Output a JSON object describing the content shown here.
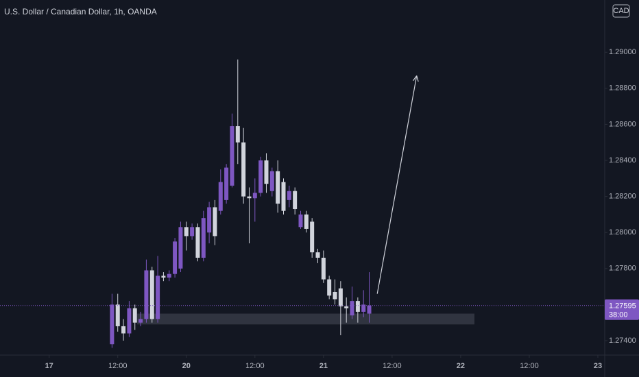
{
  "chart_data": {
    "type": "candlestick",
    "title": "U.S. Dollar / Canadian Dollar, 1h, OANDA",
    "currency": "CAD",
    "up_color": "#7e57c2",
    "down_color": "#d1d4dc",
    "grid": false,
    "x": [
      11,
      12,
      13,
      14,
      15,
      16,
      17,
      18,
      19,
      20,
      21,
      22,
      23,
      24,
      25,
      26,
      27,
      28,
      29,
      30,
      31,
      32,
      33,
      34,
      35,
      36,
      37,
      38,
      39,
      40,
      41,
      42,
      43,
      44,
      45,
      46,
      47,
      48,
      49,
      50,
      51,
      52,
      53,
      54,
      55,
      56
    ],
    "open": [
      1.2738,
      1.276,
      1.2748,
      1.2744,
      1.2758,
      1.275,
      1.2752,
      1.2779,
      1.2752,
      1.2776,
      1.2775,
      1.2777,
      1.278,
      1.2803,
      1.2798,
      1.2803,
      1.2786,
      1.28,
      1.2814,
      1.2812,
      1.2818,
      1.2826,
      1.2859,
      1.285,
      1.282,
      1.2819,
      1.2822,
      1.284,
      1.2823,
      1.2834,
      1.2828,
      1.2818,
      1.2823,
      1.2803,
      1.281,
      1.2806,
      1.2789,
      1.2786,
      1.2774,
      1.2767,
      1.2769,
      1.2759,
      1.2754,
      1.2762,
      1.2756,
      1.2755
    ],
    "high": [
      1.2766,
      1.2766,
      1.2752,
      1.2762,
      1.276,
      1.2756,
      1.2785,
      1.2781,
      1.2787,
      1.2778,
      1.2779,
      1.2797,
      1.2806,
      1.2806,
      1.2805,
      1.2805,
      1.2812,
      1.2817,
      1.2818,
      1.2835,
      1.2838,
      1.2866,
      1.2896,
      1.2858,
      1.2825,
      1.283,
      1.2842,
      1.2844,
      1.2836,
      1.284,
      1.283,
      1.2826,
      1.2825,
      1.2812,
      1.2812,
      1.2808,
      1.2791,
      1.279,
      1.2776,
      1.2774,
      1.2773,
      1.2764,
      1.277,
      1.2764,
      1.2768,
      1.2778
    ],
    "low": [
      1.2736,
      1.2745,
      1.274,
      1.2742,
      1.2746,
      1.2748,
      1.275,
      1.275,
      1.275,
      1.2773,
      1.2773,
      1.2775,
      1.2778,
      1.279,
      1.2796,
      1.2784,
      1.2784,
      1.2794,
      1.2793,
      1.281,
      1.2816,
      1.2825,
      1.2838,
      1.2816,
      1.2794,
      1.2806,
      1.282,
      1.2822,
      1.282,
      1.2811,
      1.281,
      1.2814,
      1.281,
      1.2802,
      1.28,
      1.2786,
      1.2783,
      1.2772,
      1.2763,
      1.276,
      1.2743,
      1.275,
      1.2752,
      1.275,
      1.2753,
      1.275
    ],
    "close": [
      1.276,
      1.2748,
      1.2744,
      1.2758,
      1.275,
      1.2752,
      1.2779,
      1.2752,
      1.2776,
      1.2775,
      1.2777,
      1.2795,
      1.2803,
      1.2798,
      1.2803,
      1.2786,
      1.2808,
      1.2814,
      1.2798,
      1.2828,
      1.2836,
      1.2859,
      1.285,
      1.282,
      1.2819,
      1.2822,
      1.284,
      1.2827,
      1.2834,
      1.2816,
      1.2812,
      1.2823,
      1.2813,
      1.281,
      1.2802,
      1.2789,
      1.2786,
      1.2774,
      1.2765,
      1.2763,
      1.2759,
      1.2758,
      1.2762,
      1.2756,
      1.276,
      1.27595
    ],
    "xlim": [
      -8.6,
      97.2
    ],
    "ylim": [
      1.2732,
      1.2929
    ],
    "xticks": [
      {
        "value": 0,
        "label": "17"
      },
      {
        "value": 12,
        "label": "12:00"
      },
      {
        "value": 24,
        "label": "20"
      },
      {
        "value": 36,
        "label": "12:00"
      },
      {
        "value": 48,
        "label": "21"
      },
      {
        "value": 60,
        "label": "12:00"
      },
      {
        "value": 72,
        "label": "22"
      },
      {
        "value": 84,
        "label": "12:00"
      },
      {
        "value": 96,
        "label": "23"
      }
    ],
    "yticks": [
      {
        "value": 1.274,
        "label": "1.27400"
      },
      {
        "value": 1.278,
        "label": "1.27800"
      },
      {
        "value": 1.28,
        "label": "1.28000"
      },
      {
        "value": 1.282,
        "label": "1.28200"
      },
      {
        "value": 1.284,
        "label": "1.28400"
      },
      {
        "value": 1.286,
        "label": "1.28600"
      },
      {
        "value": 1.288,
        "label": "1.28800"
      },
      {
        "value": 1.29,
        "label": "1.29000"
      }
    ],
    "price_label": {
      "value": 1.27595,
      "countdown": "38:00"
    },
    "zone": {
      "x": [
        15.4,
        74.4
      ],
      "y": [
        1.2749,
        1.2755
      ]
    },
    "arrow": {
      "x": [
        57.4,
        64.3
      ],
      "y": [
        1.2766,
        1.2887
      ]
    }
  }
}
